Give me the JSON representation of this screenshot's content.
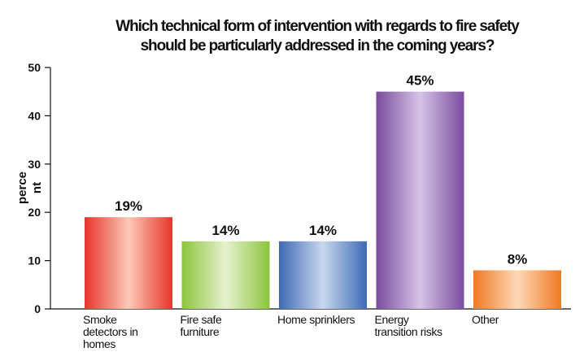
{
  "chart_data": {
    "type": "bar",
    "title": [
      "Which technical form of intervention with regards to fire safety",
      "should be particularly addressed in the coming years?"
    ],
    "ylabel": [
      "perce",
      "nt"
    ],
    "xlabel": "",
    "ylim": [
      0,
      50
    ],
    "yticks": [
      0,
      10,
      20,
      30,
      40,
      50
    ],
    "grid": false,
    "legend": "none",
    "categories": [
      [
        "Smoke",
        "detectors in",
        "homes"
      ],
      [
        "Fire safe",
        "furniture"
      ],
      [
        "Home sprinklers"
      ],
      [
        "Energy",
        "transition risks"
      ],
      [
        "Other"
      ]
    ],
    "values": [
      19,
      14,
      14,
      45,
      8
    ],
    "data_labels": [
      "19%",
      "14%",
      "14%",
      "45%",
      "8%"
    ],
    "colors": [
      {
        "edge": "#e8342a",
        "mid": "#fbc9b8"
      },
      {
        "edge": "#8cc43c",
        "mid": "#e6f2cf"
      },
      {
        "edge": "#3d6ab5",
        "mid": "#c9d7ee"
      },
      {
        "edge": "#7a4b9e",
        "mid": "#d6c4e6"
      },
      {
        "edge": "#f07a22",
        "mid": "#fdd9b8"
      }
    ]
  }
}
